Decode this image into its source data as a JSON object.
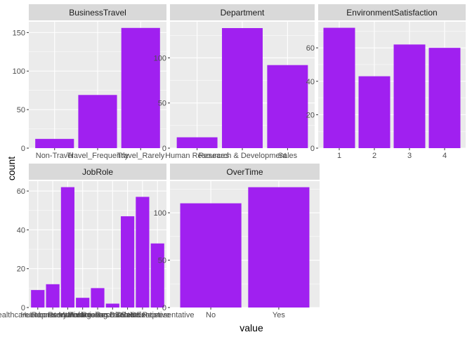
{
  "chart_data": {
    "type": "bar",
    "xlabel": "value",
    "ylabel": "count",
    "grid": true,
    "bar_color": "#a020f0",
    "panel_background": "#ebebeb",
    "strip_background": "#d9d9d9",
    "grid_color": "#ffffff",
    "facets": [
      {
        "title": "BusinessTravel",
        "categories": [
          "Non-Travel",
          "Travel_Frequently",
          "Travel_Rarely"
        ],
        "values": [
          12,
          69,
          156
        ],
        "y_ticks": [
          0,
          50,
          100,
          150
        ],
        "ylim": [
          0,
          164
        ]
      },
      {
        "title": "Department",
        "categories": [
          "Human Resources",
          "Research & Development",
          "Sales"
        ],
        "values": [
          12,
          133,
          92
        ],
        "y_ticks": [
          0,
          50,
          100
        ],
        "ylim": [
          0,
          140
        ]
      },
      {
        "title": "EnvironmentSatisfaction",
        "categories": [
          "1",
          "2",
          "3",
          "4"
        ],
        "values": [
          72,
          43,
          62,
          60
        ],
        "y_ticks": [
          0,
          20,
          40,
          60
        ],
        "ylim": [
          0,
          75.6
        ]
      },
      {
        "title": "JobRole",
        "categories": [
          "Healthcare Representative",
          "Human Resources",
          "Laboratory Technician",
          "Manager",
          "Manufacturing Director",
          "Research Director",
          "Research Scientist",
          "Sales Executive",
          "Sales Representative"
        ],
        "values": [
          9,
          12,
          62,
          5,
          10,
          2,
          47,
          57,
          33
        ],
        "y_ticks": [
          0,
          20,
          40,
          60
        ],
        "ylim": [
          0,
          65.1
        ]
      },
      {
        "title": "OverTime",
        "categories": [
          "No",
          "Yes"
        ],
        "values": [
          110,
          127
        ],
        "y_ticks": [
          0,
          50,
          100
        ],
        "ylim": [
          0,
          133.4
        ]
      }
    ]
  }
}
